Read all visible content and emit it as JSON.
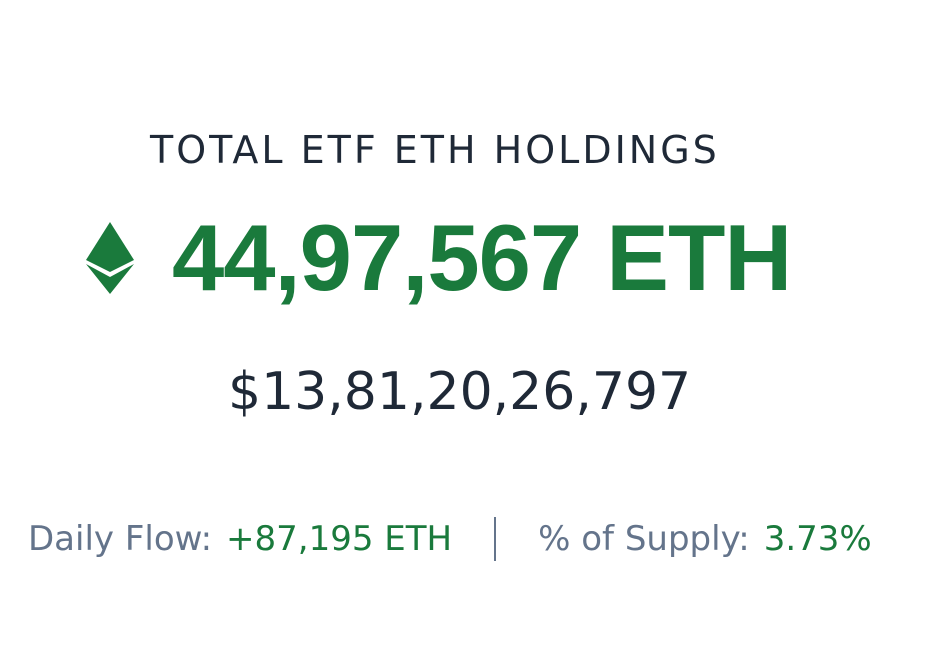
{
  "heading": {
    "title": "TOTAL ETF ETH HOLDINGS"
  },
  "holdings": {
    "icon": "ethereum-icon",
    "amount": "44,97,567 ETH",
    "usd_value": "$13,81,20,26,797"
  },
  "stats": {
    "daily_flow_label": "Daily Flow:",
    "daily_flow_value": "+87,195 ETH",
    "supply_label": "% of Supply:",
    "supply_value": "3.73%"
  },
  "colors": {
    "accent_green": "#1a7a3c",
    "text_dark": "#1f2937",
    "text_muted": "#64748b",
    "background": "#ffffff"
  }
}
